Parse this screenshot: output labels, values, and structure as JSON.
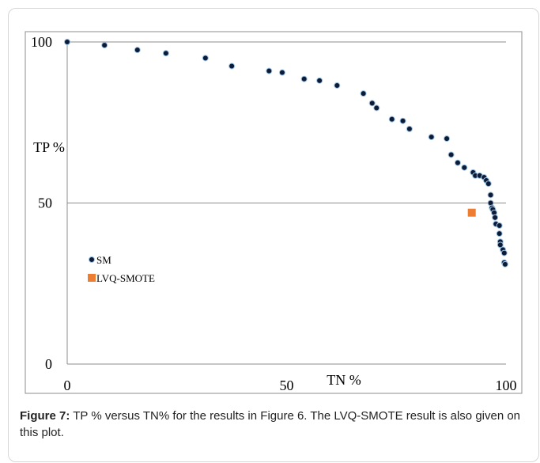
{
  "chart_data": {
    "type": "scatter",
    "xlabel": "TN %",
    "ylabel": "TP %",
    "xlim": [
      0,
      100
    ],
    "ylim": [
      0,
      100
    ],
    "xticks": [
      0,
      50,
      100
    ],
    "yticks": [
      0,
      50,
      100
    ],
    "grid": true,
    "legend": "left",
    "series": [
      {
        "name": "SM",
        "color": "#0d1b36",
        "marker": "circle",
        "x": [
          0,
          8.5,
          16,
          22.5,
          31.5,
          37.5,
          46,
          49,
          54,
          57.5,
          61.5,
          67.5,
          69.5,
          70.5,
          74,
          76.5,
          78,
          83,
          86.5,
          87.5,
          89,
          90.5,
          92.5,
          93,
          94,
          95,
          95.5,
          96,
          96.5,
          96.5,
          96.8,
          97,
          97.3,
          97.5,
          97.7,
          98.5,
          98.5,
          98.7,
          98.7,
          99.3,
          99.6,
          99.6,
          99.8
        ],
        "y": [
          100,
          99,
          97.5,
          96.5,
          95,
          92.5,
          91,
          90.5,
          88.5,
          88,
          86.5,
          84,
          81,
          79.5,
          76,
          75.5,
          73,
          70.5,
          70,
          65,
          62.5,
          61,
          59.5,
          58.5,
          58.5,
          58,
          57,
          56,
          52.5,
          50,
          48.5,
          48,
          47,
          45.5,
          43.5,
          43,
          40.5,
          38,
          37,
          35.5,
          34.5,
          31.5,
          31
        ]
      },
      {
        "name": "LVQ-SMOTE",
        "color": "#ed7d31",
        "marker": "square",
        "x": [
          92.2
        ],
        "y": [
          47
        ]
      }
    ]
  },
  "caption": {
    "label": "Figure 7:",
    "text": "TP % versus TN% for the results in Figure 6. The LVQ-SMOTE result is also given on this plot."
  }
}
